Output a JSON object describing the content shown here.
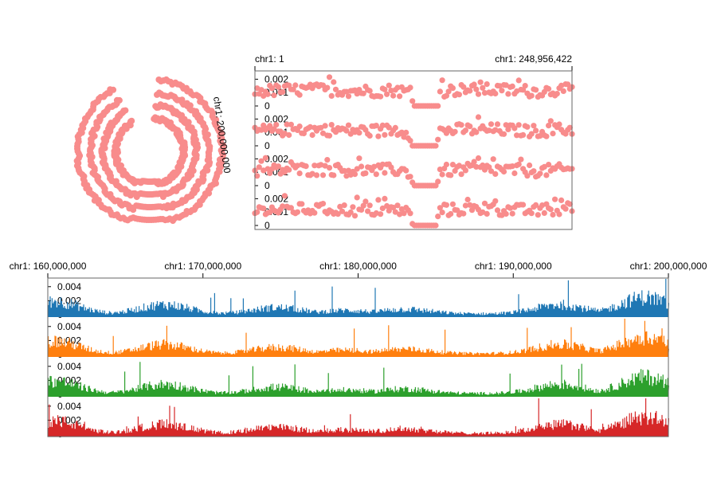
{
  "colors": {
    "scatter": "#f88c8c",
    "bg": "#ffffff",
    "track_colors": [
      "#1f77b4",
      "#ff7f0e",
      "#2ca02c",
      "#d62728"
    ]
  },
  "chart_data": [
    {
      "type": "scatter",
      "layout": "circular",
      "tracks": 4,
      "label": "chr1: 200,000,000",
      "x_range_bp": [
        1,
        248956422
      ],
      "ylim": [
        0,
        0.0025
      ]
    },
    {
      "type": "scatter",
      "layout": "linear",
      "tracks": 4,
      "x_start_label": "chr1: 1",
      "x_end_label": "chr1: 248,956,422",
      "x_range_bp": [
        1,
        248956422
      ],
      "ylim": [
        0,
        0.0025
      ],
      "y_ticks": [
        "0.002",
        "0.001",
        "0"
      ],
      "profile": {
        "x_mb": [
          0,
          30,
          60,
          90,
          110,
          121,
          125,
          143,
          145,
          160,
          190,
          220,
          248.9
        ],
        "y": [
          0.0011,
          0.0012,
          0.0012,
          0.0011,
          0.0012,
          0.001,
          0.0,
          0.0,
          0.0011,
          0.0012,
          0.0012,
          0.0011,
          0.0012
        ]
      }
    },
    {
      "type": "bar",
      "layout": "linear",
      "tracks": 4,
      "x_range_bp": [
        160000000,
        200000000
      ],
      "tick_labels": [
        "chr1: 160,000,000",
        "chr1: 170,000,000",
        "chr1: 180,000,000",
        "chr1: 190,000,000",
        "chr1: 200,000,000"
      ],
      "ylim": [
        0,
        0.005
      ],
      "y_ticks": [
        "0.004",
        "0.002",
        "0"
      ],
      "baseline": 0.0006,
      "peaks": [
        {
          "x_mb": 160.4,
          "y": 0.0028
        },
        {
          "x_mb": 167.5,
          "y": 0.0022
        },
        {
          "x_mb": 174.8,
          "y": 0.0017
        },
        {
          "x_mb": 179.2,
          "y": 0.0012
        },
        {
          "x_mb": 183.0,
          "y": 0.0014
        },
        {
          "x_mb": 187.5,
          "y": 0.0006
        },
        {
          "x_mb": 193.0,
          "y": 0.0022
        },
        {
          "x_mb": 198.5,
          "y": 0.0035
        }
      ]
    }
  ]
}
